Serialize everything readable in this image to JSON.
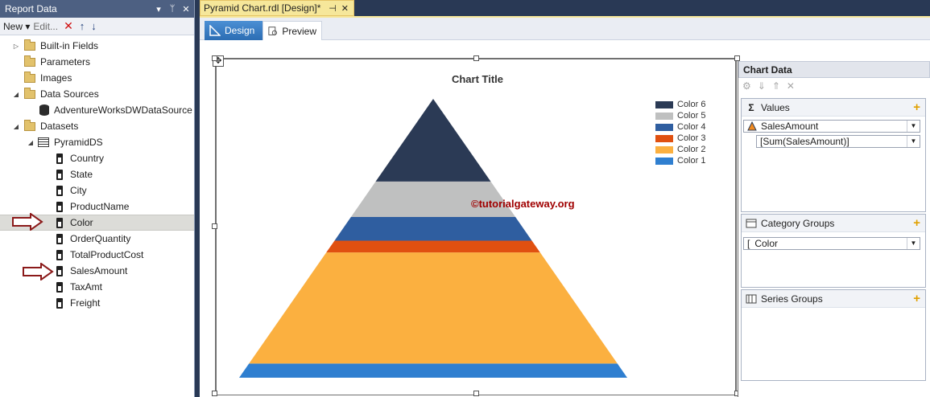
{
  "report_data": {
    "title": "Report Data",
    "pin_glyph": "▾",
    "autohide_glyph": "ᛘ",
    "close_glyph": "✕",
    "toolbar": {
      "new_label": "New ▾",
      "edit_label": "Edit...",
      "delete_glyph": "✕",
      "up_glyph": "↑",
      "down_glyph": "↓"
    },
    "tree": {
      "builtin_fields": "Built-in Fields",
      "parameters": "Parameters",
      "images": "Images",
      "data_sources": "Data Sources",
      "datasource_name": "AdventureWorksDWDataSource",
      "datasets": "Datasets",
      "dataset_name": "PyramidDS",
      "fields": [
        "Country",
        "State",
        "City",
        "ProductName",
        "Color",
        "OrderQuantity",
        "TotalProductCost",
        "SalesAmount",
        "TaxAmt",
        "Freight"
      ],
      "selected_field": "Color"
    }
  },
  "document": {
    "tab_title": "Pyramid Chart.rdl [Design]*",
    "pin_glyph": "⊣",
    "close_glyph": "✕",
    "view_tabs": {
      "design": "Design",
      "preview": "Preview"
    },
    "move_glyph": "✥"
  },
  "chart_data": {
    "type": "pyramid",
    "title": "Chart Title",
    "categories": [
      "Color 1",
      "Color 2",
      "Color 3",
      "Color 4",
      "Color 5",
      "Color 6"
    ],
    "values": [
      6,
      47,
      5,
      10,
      15,
      35
    ],
    "colors": [
      "#2f7fd0",
      "#fbb040",
      "#e05010",
      "#2f5ea0",
      "#bfc0c0",
      "#2b3a55"
    ],
    "legend_order": [
      "Color 6",
      "Color 5",
      "Color 4",
      "Color 3",
      "Color 2",
      "Color 1"
    ],
    "legend_position": "top-right",
    "watermark": "©tutorialgateway.org"
  },
  "chart_data_panel": {
    "title": "Chart Data",
    "toolbar_glyphs": [
      "⚙",
      "⇓",
      "⇑",
      "✕"
    ],
    "values_section": {
      "label": "Values",
      "icon": "Σ",
      "add_glyph": "+",
      "series_field": "SalesAmount",
      "expression": "[Sum(SalesAmount)]"
    },
    "category_section": {
      "label": "Category Groups",
      "add_glyph": "+",
      "group": "Color",
      "group_prefix": "["
    },
    "series_section": {
      "label": "Series Groups",
      "add_glyph": "+"
    },
    "dropdown_glyph": "▼"
  }
}
